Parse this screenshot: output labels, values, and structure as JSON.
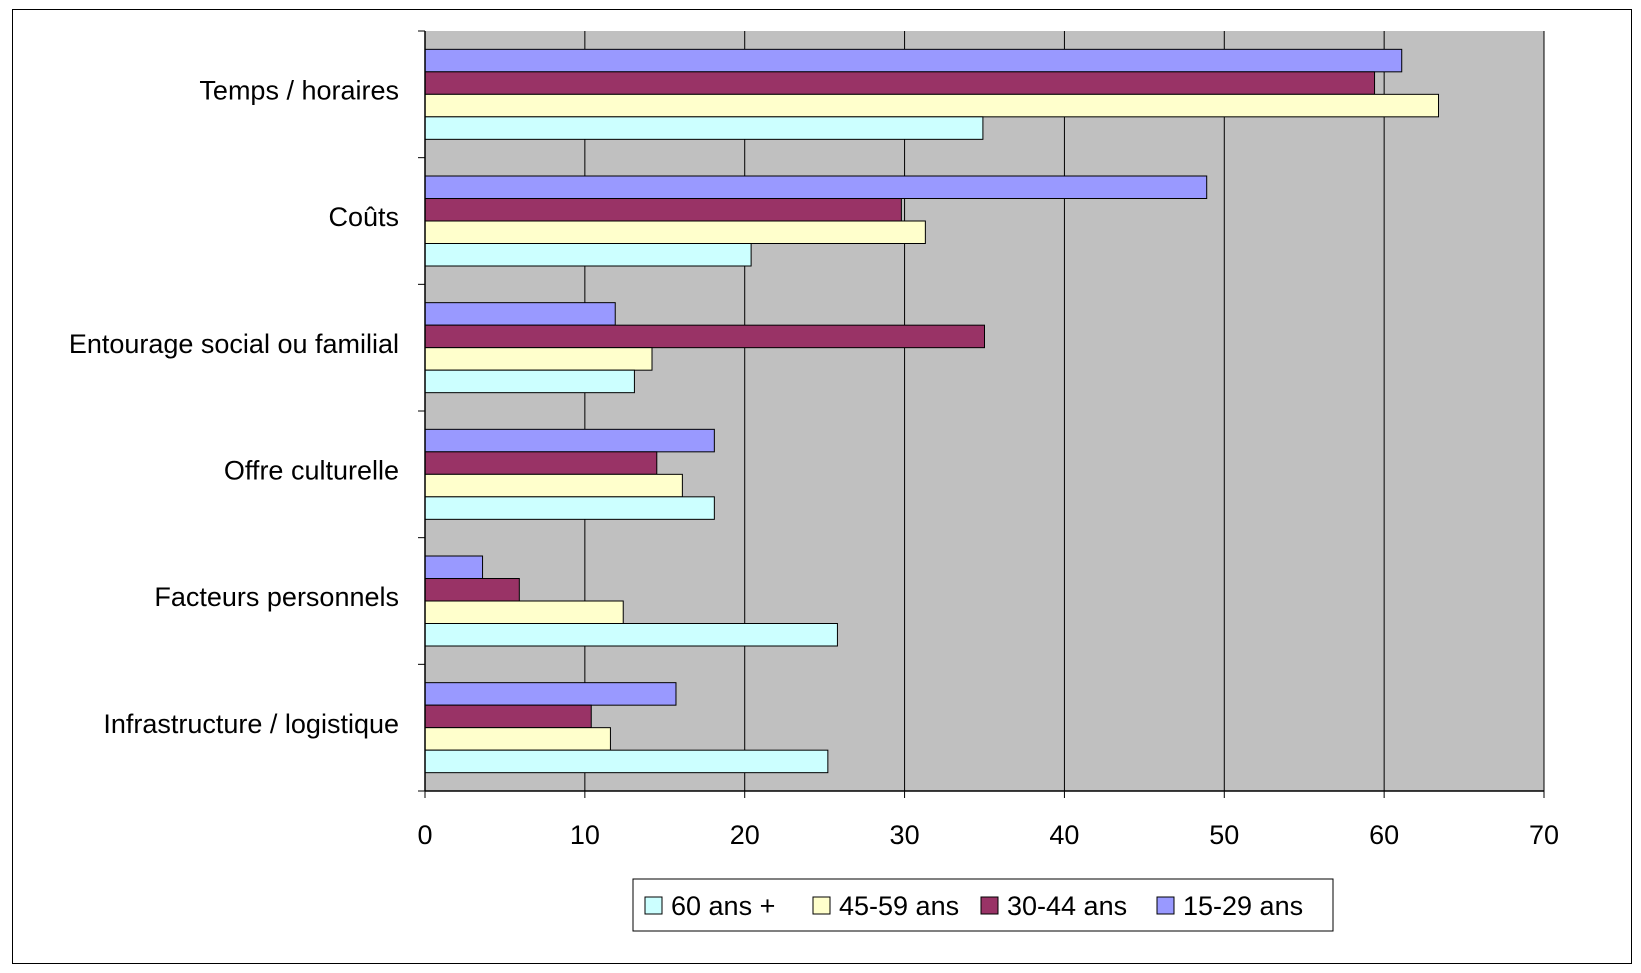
{
  "chart_data": {
    "type": "bar",
    "orientation": "horizontal",
    "categories": [
      "Temps / horaires",
      "Coûts",
      "Entourage social ou familial",
      "Offre culturelle",
      "Facteurs personnels",
      "Infrastructure / logistique"
    ],
    "series": [
      {
        "name": "15-29 ans",
        "color": "#9999FF",
        "values": [
          61.1,
          48.9,
          11.9,
          18.1,
          3.6,
          15.7
        ]
      },
      {
        "name": "30-44 ans",
        "color": "#993366",
        "values": [
          59.4,
          29.8,
          35.0,
          14.5,
          5.9,
          10.4
        ]
      },
      {
        "name": "45-59 ans",
        "color": "#FFFFCC",
        "values": [
          63.4,
          31.3,
          14.2,
          16.1,
          12.4,
          11.6
        ]
      },
      {
        "name": "60 ans +",
        "color": "#CCFFFF",
        "values": [
          34.9,
          20.4,
          13.1,
          18.1,
          25.8,
          25.2
        ]
      }
    ],
    "legend_order": [
      "60 ans +",
      "45-59 ans",
      "30-44 ans",
      "15-29 ans"
    ],
    "xlim": [
      0,
      70
    ],
    "xticks": [
      "0",
      "10",
      "20",
      "30",
      "40",
      "50",
      "60",
      "70"
    ],
    "grid": true,
    "plot_background": "#C0C0C0",
    "legend_position": "bottom",
    "title": "",
    "xlabel": "",
    "ylabel": ""
  }
}
